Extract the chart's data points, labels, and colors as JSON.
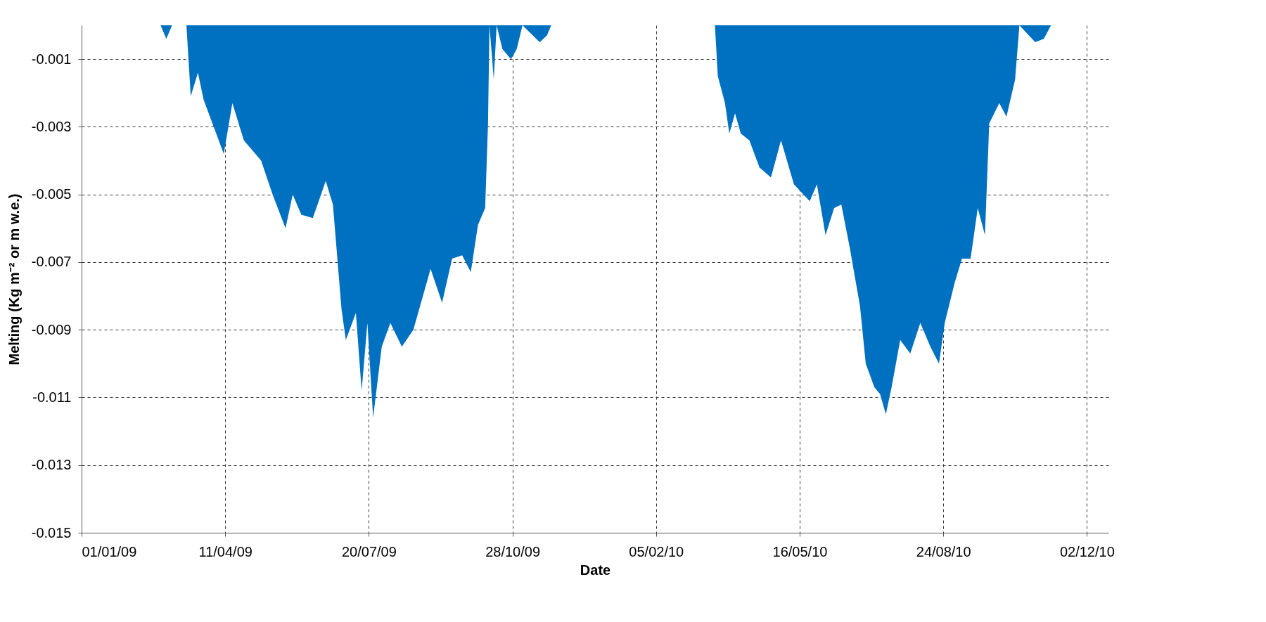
{
  "chart_data": {
    "type": "area",
    "xlabel": "Date",
    "ylabel": "Melting (Kg m⁻² or m w.e.)",
    "x": [
      "2009-01-01",
      "2009-02-25",
      "2009-03-01",
      "2009-03-05",
      "2009-03-15",
      "2009-03-18",
      "2009-03-23",
      "2009-03-27",
      "2009-04-10",
      "2009-04-16",
      "2009-04-24",
      "2009-05-06",
      "2009-05-14",
      "2009-05-23",
      "2009-05-28",
      "2009-06-03",
      "2009-06-11",
      "2009-06-20",
      "2009-06-25",
      "2009-07-01",
      "2009-07-04",
      "2009-07-11",
      "2009-07-15",
      "2009-07-19",
      "2009-07-23",
      "2009-07-29",
      "2009-08-04",
      "2009-08-12",
      "2009-08-20",
      "2009-08-26",
      "2009-09-01",
      "2009-09-09",
      "2009-09-16",
      "2009-09-23",
      "2009-09-29",
      "2009-10-04",
      "2009-10-09",
      "2009-10-11",
      "2009-10-12",
      "2009-10-15",
      "2009-10-17",
      "2009-10-21",
      "2009-10-27",
      "2009-10-31",
      "2009-11-04",
      "2009-11-16",
      "2009-11-21",
      "2009-11-24",
      "2010-03-18",
      "2010-03-20",
      "2010-03-25",
      "2010-03-28",
      "2010-04-01",
      "2010-04-05",
      "2010-04-11",
      "2010-04-18",
      "2010-04-26",
      "2010-05-03",
      "2010-05-12",
      "2010-05-23",
      "2010-05-28",
      "2010-06-03",
      "2010-06-09",
      "2010-06-14",
      "2010-06-20",
      "2010-06-27",
      "2010-07-01",
      "2010-07-07",
      "2010-07-11",
      "2010-07-15",
      "2010-07-19",
      "2010-07-25",
      "2010-08-01",
      "2010-08-08",
      "2010-08-15",
      "2010-08-21",
      "2010-08-25",
      "2010-09-01",
      "2010-09-06",
      "2010-09-12",
      "2010-09-17",
      "2010-09-22",
      "2010-09-25",
      "2010-10-02",
      "2010-10-07",
      "2010-10-13",
      "2010-10-16",
      "2010-10-27",
      "2010-11-02",
      "2010-11-07",
      "2010-12-17"
    ],
    "series": [
      {
        "color": "#0070c0",
        "values": [
          0,
          0,
          -0.0004,
          0,
          0,
          -0.0021,
          -0.0014,
          -0.0022,
          -0.0038,
          -0.0023,
          -0.0034,
          -0.004,
          -0.005,
          -0.006,
          -0.005,
          -0.0056,
          -0.0057,
          -0.0046,
          -0.0053,
          -0.0084,
          -0.0093,
          -0.0085,
          -0.0108,
          -0.0088,
          -0.0116,
          -0.0095,
          -0.0088,
          -0.0095,
          -0.009,
          -0.0081,
          -0.0072,
          -0.0082,
          -0.0069,
          -0.0068,
          -0.0073,
          -0.0059,
          -0.0054,
          -0.0029,
          0,
          -0.0016,
          0,
          -0.0007,
          -0.001,
          -0.0007,
          0,
          -0.0005,
          -0.0003,
          0,
          0,
          -0.0015,
          -0.0023,
          -0.0032,
          -0.0026,
          -0.0032,
          -0.0034,
          -0.0042,
          -0.0045,
          -0.0034,
          -0.0047,
          -0.0052,
          -0.0047,
          -0.0062,
          -0.0054,
          -0.0053,
          -0.0066,
          -0.0083,
          -0.01,
          -0.0107,
          -0.0109,
          -0.0115,
          -0.0107,
          -0.0093,
          -0.0097,
          -0.0088,
          -0.0095,
          -0.01,
          -0.0088,
          -0.0076,
          -0.0069,
          -0.0069,
          -0.0054,
          -0.0062,
          -0.0029,
          -0.0023,
          -0.0027,
          -0.0016,
          0,
          -0.0005,
          -0.0004,
          0,
          0
        ]
      }
    ],
    "xlim": [
      "2009-01-01",
      "2010-12-17"
    ],
    "xticks": [
      {
        "value": "2009-01-01",
        "label": "01/01/09"
      },
      {
        "value": "2009-04-11",
        "label": "11/04/09"
      },
      {
        "value": "2009-07-20",
        "label": "20/07/09"
      },
      {
        "value": "2009-10-28",
        "label": "28/10/09"
      },
      {
        "value": "2010-02-05",
        "label": "05/02/10"
      },
      {
        "value": "2010-05-16",
        "label": "16/05/10"
      },
      {
        "value": "2010-08-24",
        "label": "24/08/10"
      },
      {
        "value": "2010-12-02",
        "label": "02/12/10"
      }
    ],
    "ylim": [
      -0.015,
      0
    ],
    "yticks": [
      -0.015,
      -0.013,
      -0.011,
      -0.009,
      -0.007,
      -0.005,
      -0.003,
      -0.001
    ],
    "grid": true
  }
}
